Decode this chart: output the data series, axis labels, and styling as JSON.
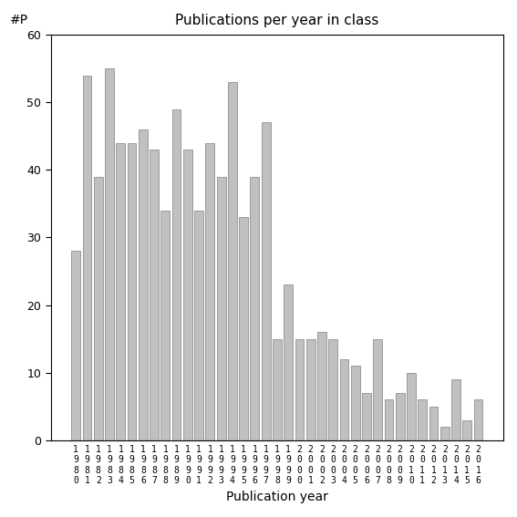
{
  "title": "Publications per year in class",
  "xlabel": "Publication year",
  "ylabel": "#P",
  "bar_color": "#c0c0c0",
  "bar_edgecolor": "#808080",
  "ylim": [
    0,
    60
  ],
  "yticks": [
    0,
    10,
    20,
    30,
    40,
    50,
    60
  ],
  "years": [
    1980,
    1981,
    1982,
    1983,
    1984,
    1985,
    1986,
    1987,
    1988,
    1989,
    1990,
    1991,
    1992,
    1993,
    1994,
    1995,
    1996,
    1997,
    1998,
    1999,
    2000,
    2001,
    2002,
    2003,
    2004,
    2005,
    2006,
    2007,
    2008,
    2009,
    2010,
    2011,
    2012,
    2013,
    2014,
    2015,
    2016
  ],
  "values": [
    28,
    54,
    39,
    55,
    44,
    44,
    46,
    43,
    34,
    49,
    43,
    34,
    44,
    39,
    53,
    33,
    39,
    47,
    15,
    23,
    15,
    15,
    16,
    15,
    12,
    11,
    7,
    15,
    6,
    7,
    10,
    6,
    5,
    2,
    9,
    3,
    6
  ]
}
